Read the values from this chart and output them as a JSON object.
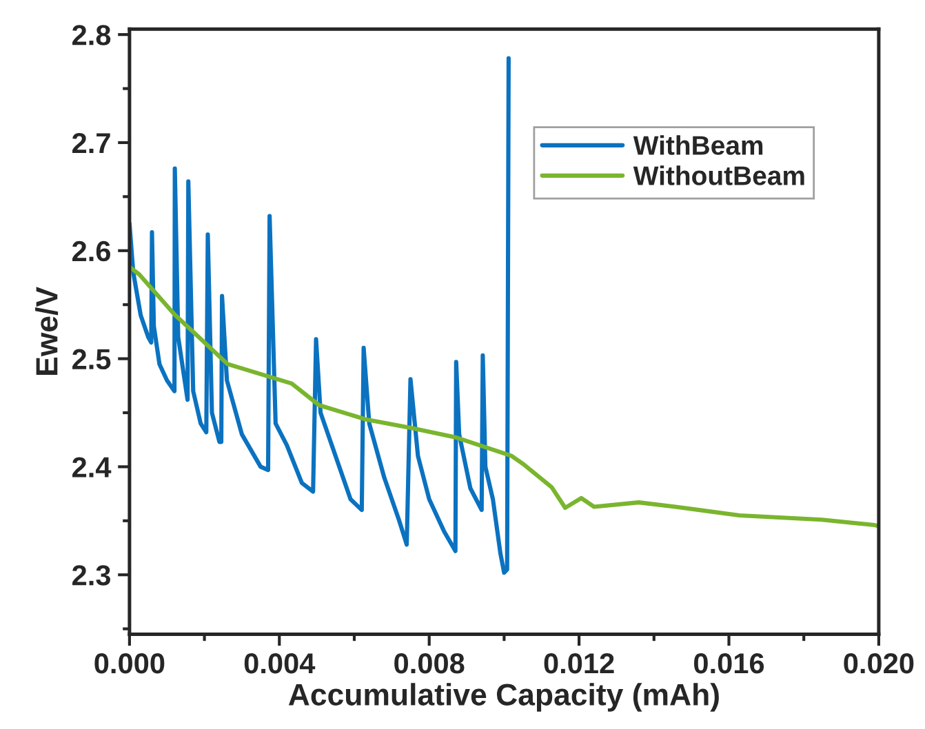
{
  "chart_data": {
    "type": "line",
    "xlabel": "Accumulative Capacity (mAh)",
    "ylabel": "Ewe/V",
    "xlim": [
      0,
      0.02
    ],
    "ylim": [
      2.245,
      2.805
    ],
    "xticks": [
      {
        "value": 0,
        "label": "0.000"
      },
      {
        "value": 0.002,
        "label": null
      },
      {
        "value": 0.004,
        "label": "0.004"
      },
      {
        "value": 0.006,
        "label": null
      },
      {
        "value": 0.008,
        "label": "0.008"
      },
      {
        "value": 0.01,
        "label": null
      },
      {
        "value": 0.012,
        "label": "0.012"
      },
      {
        "value": 0.014,
        "label": null
      },
      {
        "value": 0.016,
        "label": "0.016"
      },
      {
        "value": 0.018,
        "label": null
      },
      {
        "value": 0.02,
        "label": "0.020"
      }
    ],
    "yticks": [
      {
        "value": 2.25,
        "label": null
      },
      {
        "value": 2.3,
        "label": "2.3"
      },
      {
        "value": 2.35,
        "label": null
      },
      {
        "value": 2.4,
        "label": "2.4"
      },
      {
        "value": 2.45,
        "label": null
      },
      {
        "value": 2.5,
        "label": "2.5"
      },
      {
        "value": 2.55,
        "label": null
      },
      {
        "value": 2.6,
        "label": "2.6"
      },
      {
        "value": 2.65,
        "label": null
      },
      {
        "value": 2.7,
        "label": "2.7"
      },
      {
        "value": 2.75,
        "label": null
      },
      {
        "value": 2.8,
        "label": "2.8"
      }
    ],
    "grid": false,
    "legend": "top right",
    "marker": "none",
    "line_style": "solid",
    "series": [
      {
        "name": "WithBeam",
        "color": "#0b72c0",
        "x": [
          0,
          0.0001,
          0.0003,
          0.0005,
          0.00058,
          0.0006,
          0.00065,
          0.0008,
          0.001,
          0.0012,
          0.00121,
          0.0013,
          0.00155,
          0.00157,
          0.0017,
          0.0019,
          0.00205,
          0.00209,
          0.0022,
          0.0024,
          0.00245,
          0.00247,
          0.0026,
          0.003,
          0.0035,
          0.0037,
          0.00374,
          0.0039,
          0.0042,
          0.0046,
          0.0049,
          0.00498,
          0.0051,
          0.0055,
          0.0059,
          0.0062,
          0.00625,
          0.0064,
          0.0068,
          0.0072,
          0.0074,
          0.0075,
          0.0077,
          0.008,
          0.0084,
          0.0087,
          0.00872,
          0.0088,
          0.0091,
          0.0094,
          0.00943,
          0.0095,
          0.0097,
          0.0099,
          0.01,
          0.01008,
          0.01012
        ],
        "values": [
          2.625,
          2.58,
          2.54,
          2.52,
          2.515,
          2.617,
          2.53,
          2.495,
          2.48,
          2.47,
          2.676,
          2.52,
          2.462,
          2.664,
          2.47,
          2.44,
          2.432,
          2.615,
          2.45,
          2.423,
          2.423,
          2.558,
          2.48,
          2.43,
          2.4,
          2.397,
          2.632,
          2.44,
          2.42,
          2.385,
          2.377,
          2.518,
          2.45,
          2.41,
          2.37,
          2.36,
          2.51,
          2.44,
          2.39,
          2.35,
          2.328,
          2.481,
          2.41,
          2.37,
          2.34,
          2.322,
          2.497,
          2.43,
          2.38,
          2.36,
          2.503,
          2.4,
          2.37,
          2.32,
          2.302,
          2.305,
          2.778
        ]
      },
      {
        "name": "WithoutBeam",
        "color": "#7ab52e",
        "x": [
          0,
          0.00026,
          0.0012,
          0.00262,
          0.00433,
          0.00506,
          0.00629,
          0.00751,
          0.00873,
          0.0102,
          0.01053,
          0.01127,
          0.01163,
          0.01206,
          0.0124,
          0.01359,
          0.01457,
          0.01628,
          0.01848,
          0.01989,
          0.02
        ],
        "values": [
          2.585,
          2.578,
          2.541,
          2.495,
          2.477,
          2.457,
          2.444,
          2.436,
          2.427,
          2.41,
          2.402,
          2.381,
          2.362,
          2.371,
          2.363,
          2.367,
          2.363,
          2.355,
          2.351,
          2.346,
          2.345
        ]
      }
    ]
  }
}
